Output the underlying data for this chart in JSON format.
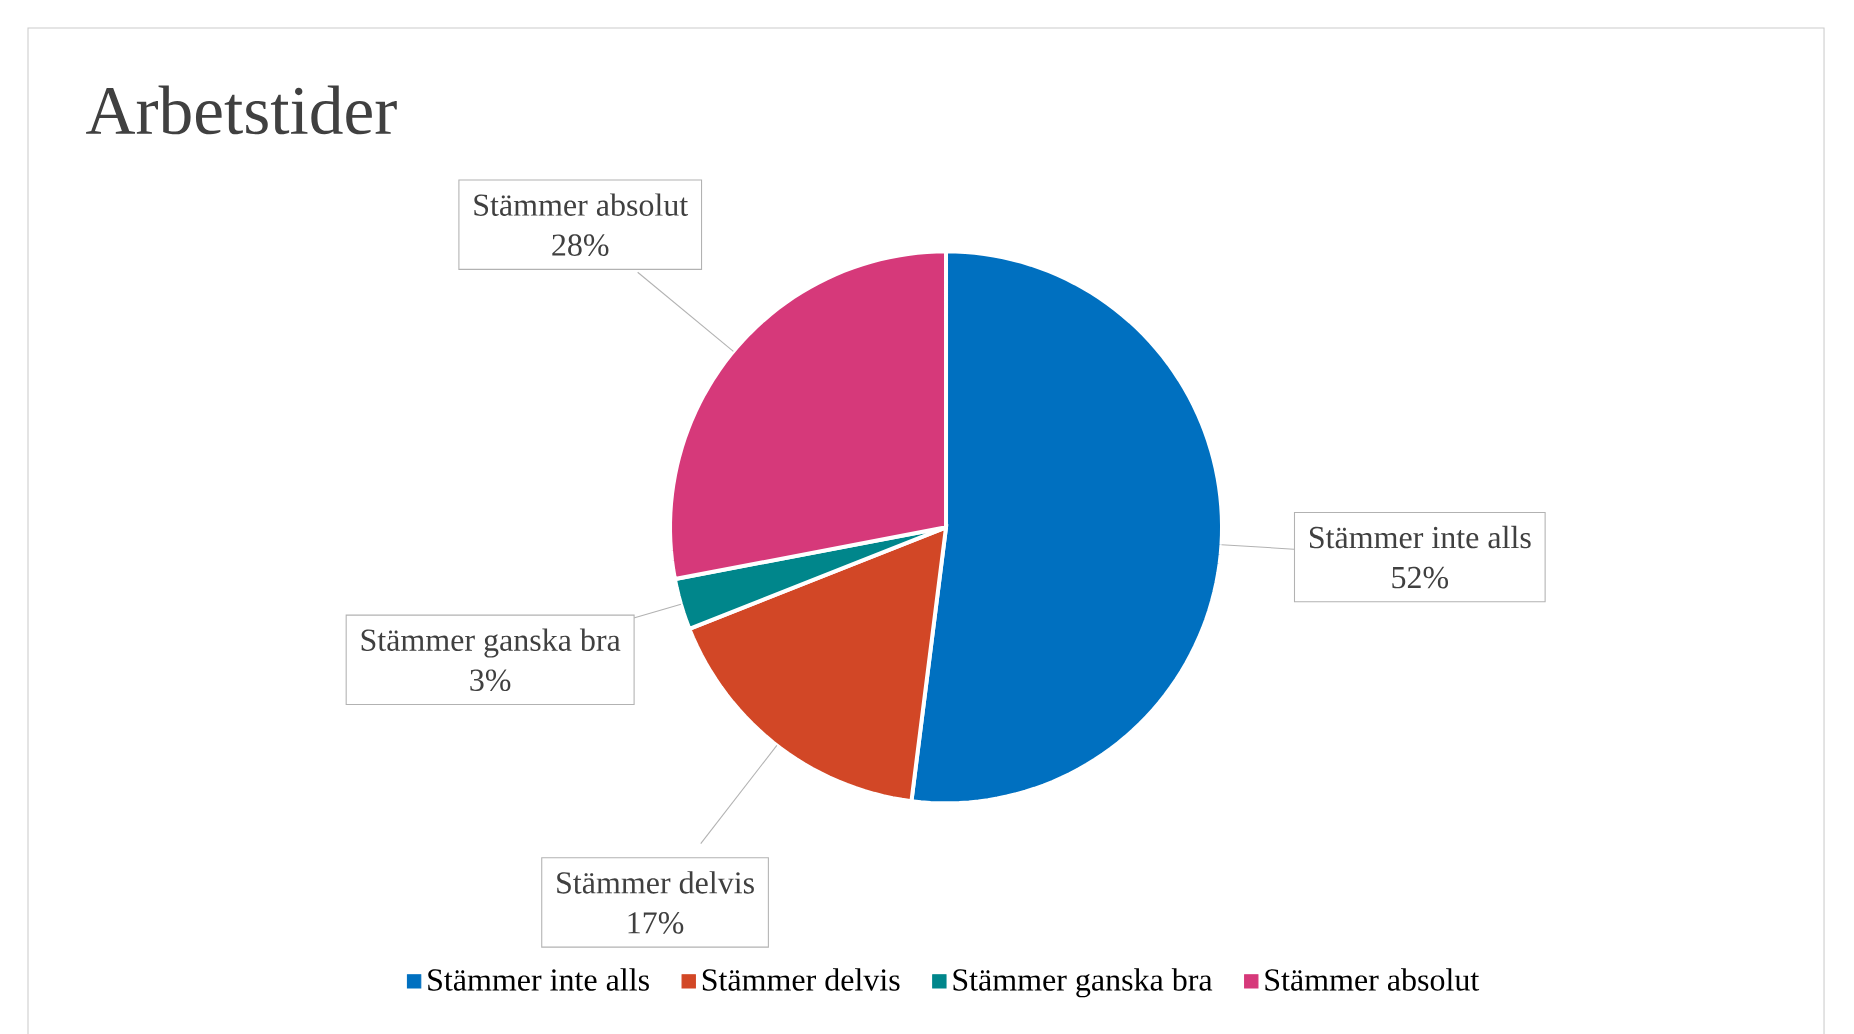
{
  "chart_data": {
    "type": "pie",
    "title": "Arbetstider",
    "categories": [
      "Stämmer inte alls",
      "Stämmer delvis",
      "Stämmer ganska bra",
      "Stämmer absolut"
    ],
    "values": [
      52,
      17,
      3,
      28
    ],
    "colors": [
      "#0070c0",
      "#d24726",
      "#00868b",
      "#d6397a"
    ],
    "value_labels": [
      "52%",
      "17%",
      "3%",
      "28%"
    ],
    "legend": "bottom"
  }
}
